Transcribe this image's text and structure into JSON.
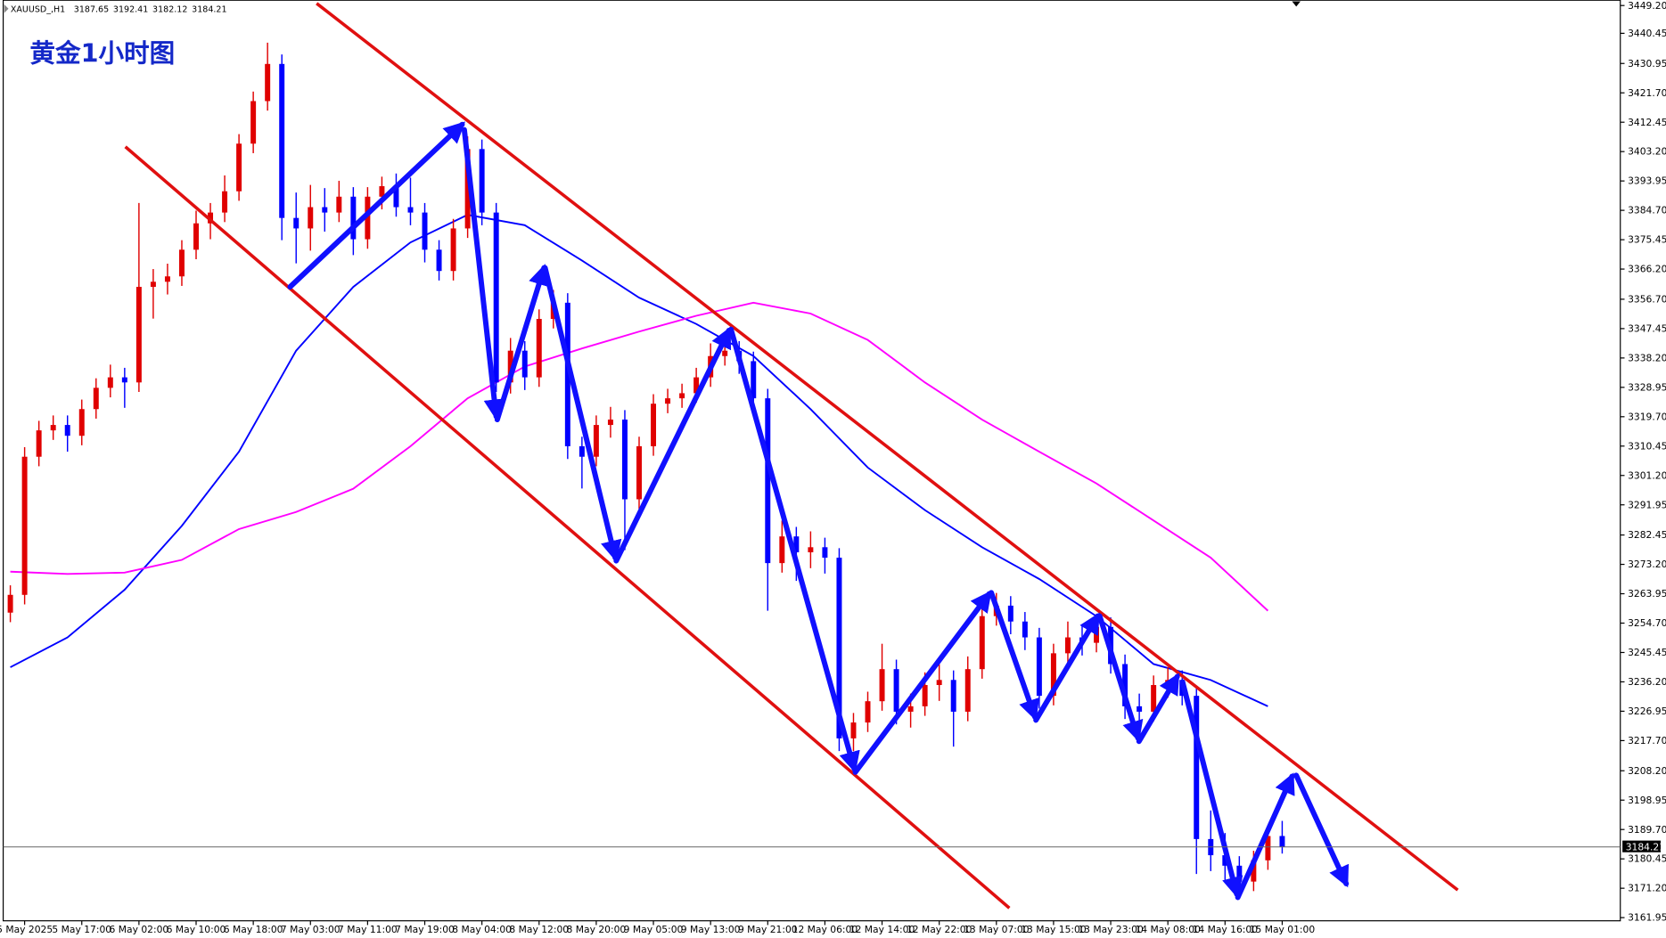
{
  "chart_data": {
    "type": "candlestick",
    "title": "黄金1小时图",
    "symbol": "XAUUSD_,H1",
    "up_color": "#e00000",
    "down_color": "#0000ff",
    "categories": [
      null,
      "5 May 2025",
      null,
      null,
      null,
      "5 May 17:00",
      null,
      null,
      null,
      "6 May 02:00",
      null,
      null,
      null,
      "6 May 10:00",
      null,
      null,
      null,
      "6 May 18:00",
      null,
      null,
      null,
      "7 May 03:00",
      null,
      null,
      null,
      "7 May 11:00",
      null,
      null,
      null,
      "7 May 19:00",
      null,
      null,
      null,
      "8 May 04:00",
      null,
      null,
      null,
      "8 May 12:00",
      null,
      null,
      null,
      "8 May 20:00",
      null,
      null,
      null,
      "9 May 05:00",
      null,
      null,
      null,
      "9 May 13:00",
      null,
      null,
      null,
      "9 May 21:00",
      null,
      null,
      null,
      "12 May 06:00",
      null,
      null,
      null,
      "12 May 14:00",
      null,
      null,
      null,
      "12 May 22:00",
      null,
      null,
      null,
      "13 May 07:00",
      null,
      null,
      null,
      "13 May 15:00",
      null,
      null,
      null,
      "13 May 23:00",
      null,
      null,
      null,
      "14 May 08:00",
      null,
      null,
      null,
      "14 May 16:00",
      null,
      null,
      null,
      "15 May 01:00"
    ],
    "open": [
      3258.0,
      3263.6,
      3307.1,
      3315.4,
      3317.1,
      3313.7,
      3322.1,
      3328.8,
      3332.1,
      3330.5,
      3360.6,
      3362.2,
      3363.9,
      3372.3,
      3380.6,
      3384.0,
      3390.7,
      3405.7,
      3419.1,
      3430.8,
      3382.3,
      3379.0,
      3385.7,
      3384.0,
      3389.0,
      3375.6,
      3389.0,
      3392.3,
      3385.7,
      3384.0,
      3372.3,
      3365.6,
      3379.0,
      3404.0,
      3384.0,
      3330.5,
      3340.5,
      3332.1,
      3350.5,
      3355.6,
      3310.4,
      3307.1,
      3317.1,
      3318.8,
      3293.7,
      3310.4,
      3323.8,
      3325.5,
      3327.1,
      3332.1,
      3338.8,
      3340.5,
      3337.2,
      3325.5,
      3273.6,
      3282.0,
      3277.0,
      3278.6,
      3275.3,
      3218.4,
      3223.4,
      3230.1,
      3240.2,
      3226.8,
      3228.5,
      3235.2,
      3236.8,
      3226.8,
      3240.2,
      3256.9,
      3260.2,
      3255.2,
      3250.2,
      3231.8,
      3245.2,
      3250.2,
      3248.5,
      3253.5,
      3241.8,
      3228.5,
      3226.8,
      3235.2,
      3236.8,
      3231.8,
      3186.7,
      3181.6,
      3178.3,
      3173.3,
      3180.0,
      3187.65
    ],
    "high": [
      3266.6,
      3310.1,
      3318.4,
      3320.1,
      3320.1,
      3325.1,
      3331.8,
      3336.1,
      3335.1,
      3387.0,
      3366.2,
      3367.9,
      3375.3,
      3384.6,
      3387.0,
      3395.7,
      3408.7,
      3422.1,
      3437.5,
      3433.8,
      3390.3,
      3392.7,
      3391.7,
      3394.0,
      3392.0,
      3392.0,
      3395.3,
      3396.3,
      3395.0,
      3387.0,
      3375.3,
      3382.0,
      3408.0,
      3407.0,
      3387.0,
      3344.5,
      3343.5,
      3353.5,
      3359.6,
      3358.6,
      3313.4,
      3320.1,
      3322.8,
      3321.8,
      3313.4,
      3326.8,
      3328.5,
      3330.1,
      3335.1,
      3342.8,
      3345.5,
      3343.5,
      3340.2,
      3328.5,
      3287.0,
      3285.0,
      3283.6,
      3281.6,
      3278.3,
      3226.4,
      3233.1,
      3248.2,
      3243.2,
      3232.5,
      3239.2,
      3241.8,
      3239.8,
      3244.2,
      3259.9,
      3264.2,
      3263.2,
      3258.2,
      3253.2,
      3248.2,
      3255.2,
      3254.2,
      3257.5,
      3256.5,
      3244.8,
      3232.5,
      3238.2,
      3240.8,
      3239.8,
      3234.8,
      3195.7,
      3188.6,
      3181.3,
      3183.0,
      3190.65,
      3192.41
    ],
    "low": [
      3255.0,
      3260.6,
      3304.1,
      3312.4,
      3308.7,
      3310.7,
      3319.1,
      3325.8,
      3322.5,
      3327.5,
      3350.6,
      3358.2,
      3360.9,
      3369.3,
      3375.6,
      3381.0,
      3387.7,
      3402.7,
      3416.1,
      3375.3,
      3368.0,
      3372.0,
      3378.0,
      3381.0,
      3370.6,
      3372.6,
      3385.0,
      3382.7,
      3380.0,
      3368.3,
      3362.6,
      3362.6,
      3376.0,
      3380.0,
      3327.5,
      3327.0,
      3328.1,
      3329.1,
      3347.5,
      3306.4,
      3297.1,
      3304.1,
      3313.1,
      3277.7,
      3290.7,
      3307.4,
      3320.8,
      3322.5,
      3324.1,
      3329.1,
      3335.8,
      3333.2,
      3321.5,
      3258.6,
      3270.6,
      3268.0,
      3272.0,
      3270.3,
      3214.4,
      3214.4,
      3220.4,
      3227.1,
      3222.8,
      3221.8,
      3225.5,
      3230.2,
      3215.8,
      3223.8,
      3237.2,
      3253.9,
      3251.2,
      3246.2,
      3227.8,
      3228.8,
      3242.2,
      3244.5,
      3245.5,
      3238.8,
      3224.5,
      3222.8,
      3223.8,
      3231.2,
      3228.8,
      3175.7,
      3176.6,
      3173.3,
      3168.3,
      3170.3,
      3177.0,
      3182.12
    ],
    "close": [
      3263.6,
      3307.1,
      3315.4,
      3317.1,
      3313.7,
      3322.1,
      3328.8,
      3332.1,
      3330.5,
      3360.6,
      3362.2,
      3363.9,
      3372.3,
      3380.6,
      3384.0,
      3390.7,
      3405.7,
      3419.1,
      3430.8,
      3382.3,
      3379.0,
      3385.7,
      3384.0,
      3389.0,
      3375.6,
      3389.0,
      3392.3,
      3385.7,
      3384.0,
      3372.3,
      3365.6,
      3379.0,
      3404.0,
      3384.0,
      3330.5,
      3340.5,
      3332.1,
      3350.5,
      3355.6,
      3310.4,
      3307.1,
      3317.1,
      3318.8,
      3293.7,
      3310.4,
      3323.8,
      3325.5,
      3327.1,
      3332.1,
      3338.8,
      3340.5,
      3337.2,
      3325.5,
      3273.6,
      3282.0,
      3277.0,
      3278.6,
      3275.3,
      3218.4,
      3223.4,
      3230.1,
      3240.2,
      3226.8,
      3228.5,
      3235.2,
      3236.8,
      3226.8,
      3240.2,
      3256.9,
      3260.2,
      3255.2,
      3250.2,
      3231.8,
      3245.2,
      3250.2,
      3248.5,
      3253.5,
      3241.8,
      3228.5,
      3226.8,
      3235.2,
      3236.8,
      3231.8,
      3186.7,
      3181.6,
      3178.3,
      3173.3,
      3180.0,
      3187.65,
      3184.21
    ],
    "overlays": [
      {
        "color": "#0000ff",
        "x": [
          0,
          4,
          8,
          12,
          16,
          20,
          24,
          28,
          32,
          36,
          40,
          44,
          48,
          52,
          56,
          60,
          64,
          68,
          72,
          76,
          80,
          84,
          88
        ],
        "values": [
          3240.8,
          3250.2,
          3265.2,
          3285.3,
          3308.7,
          3340.5,
          3360.6,
          3374.6,
          3383.3,
          3380.0,
          3368.9,
          3357.2,
          3348.9,
          3338.8,
          3322.1,
          3303.7,
          3290.3,
          3278.6,
          3268.6,
          3256.9,
          3241.8,
          3236.8,
          3228.5
        ]
      },
      {
        "color": "#ff00ff",
        "x": [
          0,
          4,
          8,
          12,
          16,
          20,
          24,
          28,
          32,
          36,
          40,
          44,
          48,
          52,
          56,
          60,
          64,
          68,
          72,
          76,
          80,
          84,
          88
        ],
        "values": [
          3270.9,
          3270.2,
          3270.6,
          3274.6,
          3284.3,
          3289.7,
          3297.0,
          3310.4,
          3325.5,
          3335.5,
          3341.2,
          3346.5,
          3351.5,
          3355.6,
          3352.2,
          3343.9,
          3330.5,
          3318.8,
          3308.7,
          3298.7,
          3287.0,
          3275.3,
          3258.6
        ]
      }
    ],
    "ylim": [
      3160.95,
      3450.87
    ],
    "yticks": [
      {
        "value": 3449.2,
        "label": "3449.20"
      },
      {
        "value": 3440.45,
        "label": "3440.45"
      },
      {
        "value": 3430.95,
        "label": "3430.95"
      },
      {
        "value": 3421.7,
        "label": "3421.70"
      },
      {
        "value": 3412.45,
        "label": "3412.45"
      },
      {
        "value": 3403.2,
        "label": "3403.20"
      },
      {
        "value": 3393.95,
        "label": "3393.95"
      },
      {
        "value": 3384.7,
        "label": "3384.70"
      },
      {
        "value": 3375.45,
        "label": "3375.45"
      },
      {
        "value": 3366.2,
        "label": "3366.20"
      },
      {
        "value": 3356.7,
        "label": "3356.70"
      },
      {
        "value": 3347.45,
        "label": "3347.45"
      },
      {
        "value": 3338.2,
        "label": "3338.20"
      },
      {
        "value": 3328.95,
        "label": "3328.95"
      },
      {
        "value": 3319.7,
        "label": "3319.70"
      },
      {
        "value": 3310.45,
        "label": "3310.45"
      },
      {
        "value": 3301.2,
        "label": "3301.20"
      },
      {
        "value": 3291.95,
        "label": "3291.95"
      },
      {
        "value": 3282.45,
        "label": "3282.45"
      },
      {
        "value": 3273.2,
        "label": "3273.20"
      },
      {
        "value": 3263.95,
        "label": "3263.95"
      },
      {
        "value": 3254.7,
        "label": "3254.70"
      },
      {
        "value": 3245.45,
        "label": "3245.45"
      },
      {
        "value": 3236.2,
        "label": "3236.20"
      },
      {
        "value": 3226.95,
        "label": "3226.95"
      },
      {
        "value": 3217.7,
        "label": "3217.70"
      },
      {
        "value": 3208.2,
        "label": "3208.20"
      },
      {
        "value": 3198.95,
        "label": "3198.95"
      },
      {
        "value": 3189.7,
        "label": "3189.70"
      },
      {
        "value": 3180.45,
        "label": "3180.45"
      },
      {
        "value": 3171.2,
        "label": "3171.20"
      },
      {
        "value": 3161.95,
        "label": "3161.95"
      }
    ]
  }
}
